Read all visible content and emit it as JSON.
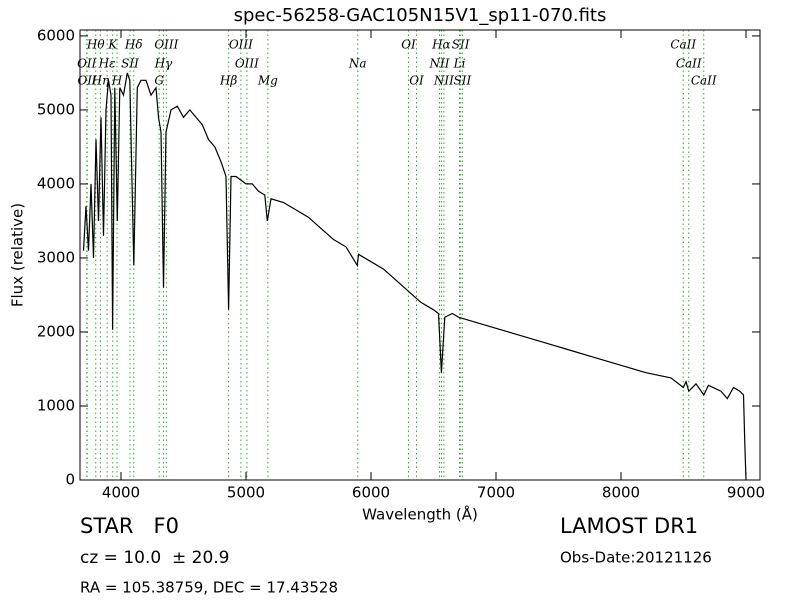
{
  "chart_data": {
    "type": "line",
    "title": "spec-56258-GAC105N15V1_sp11-070.fits",
    "x_label": "Wavelength (Å)",
    "y_label": "Flux (relative)",
    "xlim": [
      3672,
      9112
    ],
    "ylim": [
      0,
      6080
    ],
    "xticks": [
      4000,
      5000,
      6000,
      7000,
      8000,
      9000
    ],
    "yticks": [
      0,
      1000,
      2000,
      3000,
      4000,
      5000,
      6000
    ],
    "color": "#000000",
    "line_color": "#33aa33",
    "x": [
      3700,
      3720,
      3740,
      3760,
      3780,
      3800,
      3820,
      3840,
      3860,
      3880,
      3900,
      3920,
      3933,
      3950,
      3970,
      3990,
      4020,
      4050,
      4070,
      4102,
      4130,
      4160,
      4200,
      4240,
      4280,
      4300,
      4320,
      4340,
      4360,
      4400,
      4450,
      4500,
      4550,
      4600,
      4650,
      4700,
      4750,
      4800,
      4840,
      4861,
      4880,
      4920,
      5000,
      5050,
      5100,
      5150,
      5170,
      5200,
      5300,
      5400,
      5500,
      5600,
      5700,
      5800,
      5890,
      5900,
      6000,
      6100,
      6200,
      6300,
      6400,
      6500,
      6540,
      6563,
      6590,
      6650,
      6700,
      6800,
      7000,
      7200,
      7400,
      7600,
      7800,
      8000,
      8200,
      8400,
      8498,
      8520,
      8542,
      8600,
      8662,
      8700,
      8800,
      8850,
      8900,
      8950,
      8980,
      8990,
      9000
    ],
    "values": [
      3100,
      3700,
      3100,
      4000,
      3000,
      4600,
      3500,
      4900,
      3300,
      5000,
      5400,
      5200,
      2030,
      5300,
      3500,
      5300,
      5200,
      5500,
      5400,
      2900,
      5300,
      5400,
      5400,
      5200,
      5300,
      4900,
      4700,
      2600,
      4700,
      5000,
      5050,
      4900,
      5000,
      4900,
      4800,
      4600,
      4500,
      4300,
      4100,
      2300,
      4100,
      4100,
      4000,
      4000,
      3900,
      3850,
      3500,
      3800,
      3750,
      3650,
      3550,
      3400,
      3250,
      3150,
      2900,
      3050,
      2950,
      2850,
      2700,
      2550,
      2400,
      2300,
      2250,
      1450,
      2200,
      2250,
      2200,
      2150,
      2050,
      1950,
      1850,
      1750,
      1650,
      1550,
      1450,
      1380,
      1250,
      1330,
      1200,
      1300,
      1150,
      1280,
      1200,
      1100,
      1250,
      1200,
      1150,
      500,
      0
    ],
    "line_labels": [
      {
        "label": "Hθ",
        "x": 3798
      },
      {
        "label": "K",
        "x": 3934
      },
      {
        "label": "Hδ",
        "x": 4102
      },
      {
        "label": "OIII",
        "x": 4363
      },
      {
        "label": "OIII",
        "x": 4959
      },
      {
        "label": "OI",
        "x": 6300
      },
      {
        "label": "Hα",
        "x": 6563
      },
      {
        "label": "SII",
        "x": 6717
      },
      {
        "label": "CaII",
        "x": 8498
      },
      {
        "label": "OII",
        "x": 3726
      },
      {
        "label": "Hε",
        "x": 3889
      },
      {
        "label": "SII",
        "x": 4072
      },
      {
        "label": "Hγ",
        "x": 4340
      },
      {
        "label": "OIII",
        "x": 5007
      },
      {
        "label": "Na",
        "x": 5894
      },
      {
        "label": "NII",
        "x": 6548
      },
      {
        "label": "Li",
        "x": 6708
      },
      {
        "label": "CaII",
        "x": 8542
      },
      {
        "label": "OII",
        "x": 3729
      },
      {
        "label": "Hη",
        "x": 3835
      },
      {
        "label": "H",
        "x": 3968
      },
      {
        "label": "G",
        "x": 4305
      },
      {
        "label": "Hβ",
        "x": 4861
      },
      {
        "label": "Mg",
        "x": 5175
      },
      {
        "label": "OI",
        "x": 6364
      },
      {
        "label": "NII",
        "x": 6583
      },
      {
        "label": "SII",
        "x": 6731
      },
      {
        "label": "CaII",
        "x": 8662
      }
    ],
    "footer": {
      "object": "STAR   F0",
      "survey": "LAMOST DR1",
      "redshift": "cz = 10.0  ± 20.9",
      "date": "Obs-Date:20121126",
      "coords": "RA = 105.38759, DEC = 17.43528"
    }
  }
}
